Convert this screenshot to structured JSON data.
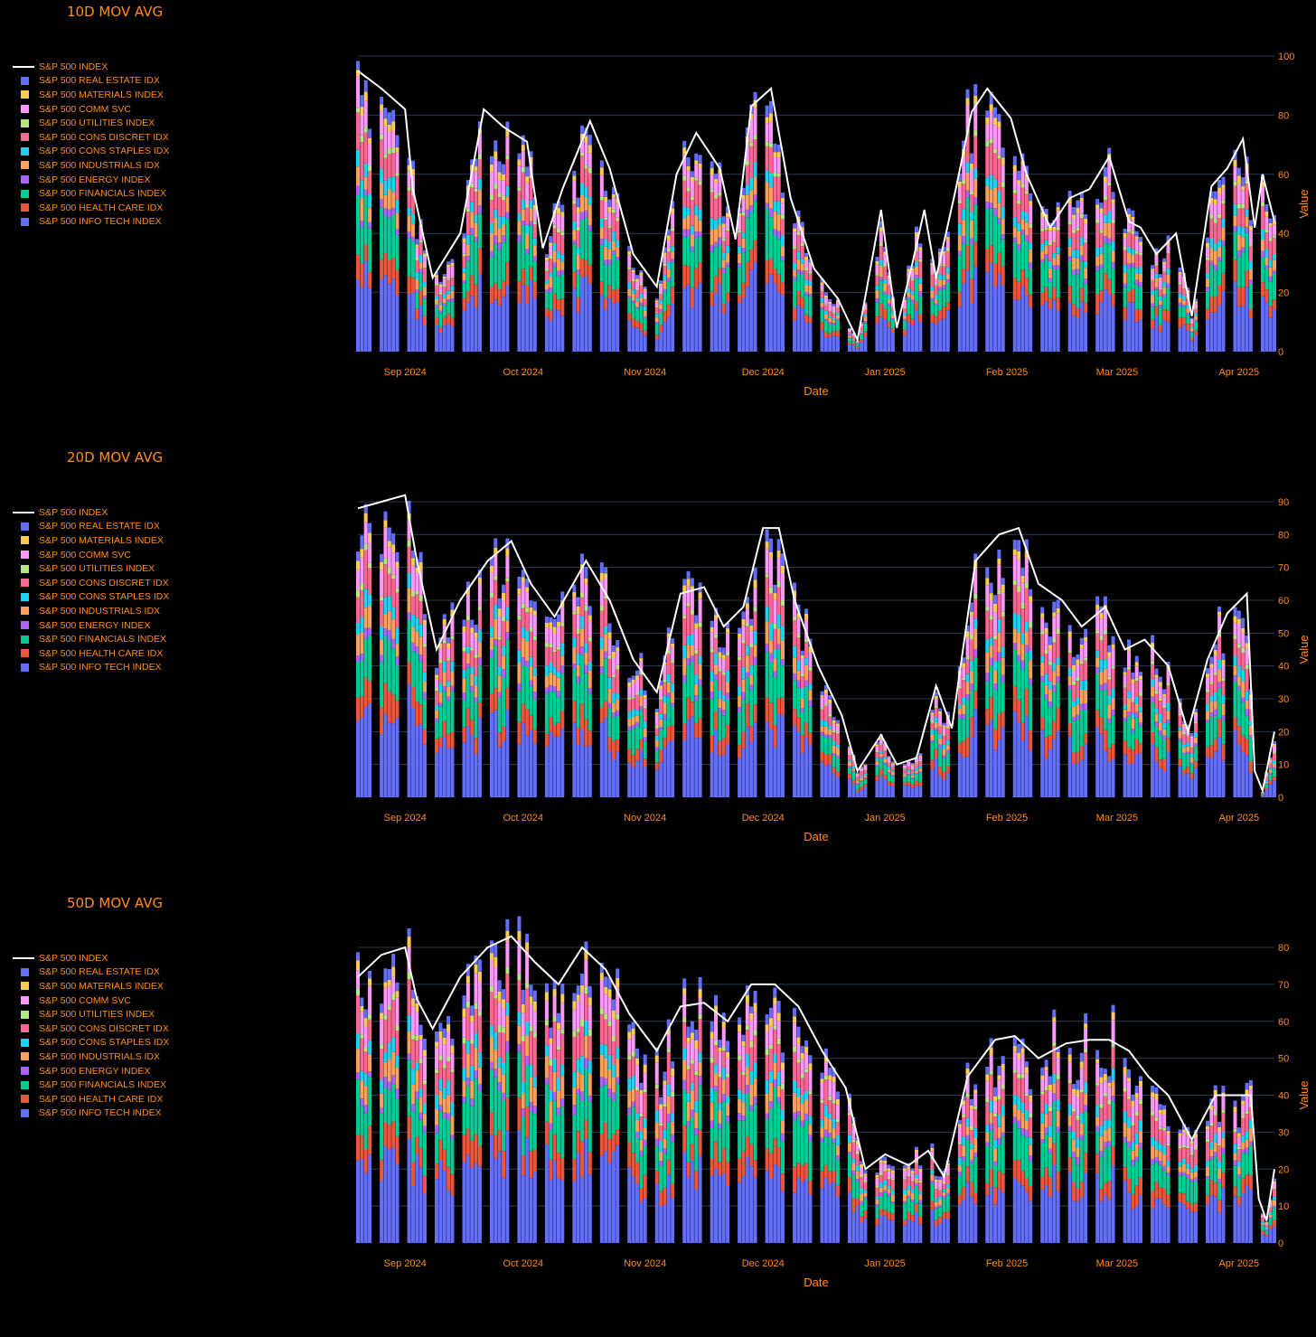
{
  "colors": {
    "background": "#000000",
    "accent": "#ff8c1a",
    "grid": "#2c3a4e",
    "index_line": "#ffffff"
  },
  "charts": [
    {
      "title": "10D MOV AVG"
    },
    {
      "title": "20D MOV AVG"
    },
    {
      "title": "50D MOV AVG"
    }
  ],
  "legend": [
    {
      "name": "S&P 500 INDEX",
      "color": "#ffffff",
      "kind": "line"
    },
    {
      "name": "S&P 500 REAL ESTATE IDX",
      "color": "#636efa",
      "kind": "bar"
    },
    {
      "name": "S&P 500 MATERIALS INDEX",
      "color": "#fecb52",
      "kind": "bar"
    },
    {
      "name": "S&P 500 COMM SVC",
      "color": "#ff97ff",
      "kind": "bar"
    },
    {
      "name": "S&P 500 UTILITIES INDEX",
      "color": "#b6e880",
      "kind": "bar"
    },
    {
      "name": "S&P 500 CONS DISCRET IDX",
      "color": "#ff6692",
      "kind": "bar"
    },
    {
      "name": "S&P 500 CONS STAPLES IDX",
      "color": "#19d3f3",
      "kind": "bar"
    },
    {
      "name": "S&P 500 INDUSTRIALS IDX",
      "color": "#ffa15a",
      "kind": "bar"
    },
    {
      "name": "S&P 500 ENERGY INDEX",
      "color": "#ab63fa",
      "kind": "bar"
    },
    {
      "name": "S&P 500 FINANCIALS INDEX",
      "color": "#00cc96",
      "kind": "bar"
    },
    {
      "name": "S&P 500 HEALTH CARE IDX",
      "color": "#ef553b",
      "kind": "bar"
    },
    {
      "name": "S&P 500 INFO TECH INDEX",
      "color": "#636efa",
      "kind": "bar"
    }
  ],
  "chart_data": [
    {
      "type": "bar",
      "barmode": "stack",
      "title": "10D MOV AVG",
      "xlabel": "Date",
      "ylabel": "Value",
      "x_range": [
        "2024-08-20",
        "2025-04-10"
      ],
      "x_ticks": [
        {
          "date": "2024-09-01",
          "label": "Sep 2024"
        },
        {
          "date": "2024-10-01",
          "label": "Oct 2024"
        },
        {
          "date": "2024-11-01",
          "label": "Nov 2024"
        },
        {
          "date": "2024-12-01",
          "label": "Dec 2024"
        },
        {
          "date": "2025-01-01",
          "label": "Jan 2025"
        },
        {
          "date": "2025-02-01",
          "label": "Feb 2025"
        },
        {
          "date": "2025-03-01",
          "label": "Mar 2025"
        },
        {
          "date": "2025-04-01",
          "label": "Apr 2025"
        }
      ],
      "ylim": [
        0,
        100
      ],
      "y_ticks": [
        0,
        20,
        40,
        60,
        80,
        100
      ],
      "y_axis_side": "right",
      "grid": true,
      "legend_position": "left",
      "index_line": [
        [
          "2024-08-20",
          95
        ],
        [
          "2024-08-26",
          89
        ],
        [
          "2024-09-01",
          82
        ],
        [
          "2024-09-03",
          55
        ],
        [
          "2024-09-08",
          25
        ],
        [
          "2024-09-15",
          40
        ],
        [
          "2024-09-21",
          82
        ],
        [
          "2024-09-26",
          76
        ],
        [
          "2024-10-02",
          71
        ],
        [
          "2024-10-06",
          35
        ],
        [
          "2024-10-11",
          55
        ],
        [
          "2024-10-18",
          78
        ],
        [
          "2024-10-23",
          62
        ],
        [
          "2024-10-29",
          33
        ],
        [
          "2024-11-04",
          22
        ],
        [
          "2024-11-09",
          60
        ],
        [
          "2024-11-14",
          74
        ],
        [
          "2024-11-20",
          62
        ],
        [
          "2024-11-24",
          38
        ],
        [
          "2024-11-28",
          83
        ],
        [
          "2024-12-03",
          89
        ],
        [
          "2024-12-08",
          52
        ],
        [
          "2024-12-14",
          28
        ],
        [
          "2024-12-20",
          18
        ],
        [
          "2024-12-25",
          4
        ],
        [
          "2024-12-31",
          48
        ],
        [
          "2025-01-04",
          8
        ],
        [
          "2025-01-08",
          30
        ],
        [
          "2025-01-11",
          48
        ],
        [
          "2025-01-14",
          25
        ],
        [
          "2025-01-19",
          55
        ],
        [
          "2025-01-23",
          81
        ],
        [
          "2025-01-27",
          89
        ],
        [
          "2025-02-02",
          79
        ],
        [
          "2025-02-06",
          60
        ],
        [
          "2025-02-12",
          42
        ],
        [
          "2025-02-17",
          52
        ],
        [
          "2025-02-22",
          55
        ],
        [
          "2025-02-27",
          66
        ],
        [
          "2025-03-04",
          44
        ],
        [
          "2025-03-07",
          42
        ],
        [
          "2025-03-11",
          33
        ],
        [
          "2025-03-16",
          40
        ],
        [
          "2025-03-20",
          12
        ],
        [
          "2025-03-25",
          56
        ],
        [
          "2025-03-29",
          62
        ],
        [
          "2025-04-02",
          72
        ],
        [
          "2025-04-05",
          42
        ],
        [
          "2025-04-07",
          60
        ],
        [
          "2025-04-10",
          44
        ]
      ]
    },
    {
      "type": "bar",
      "barmode": "stack",
      "title": "20D MOV AVG",
      "xlabel": "Date",
      "ylabel": "Value",
      "x_range": [
        "2024-08-20",
        "2025-04-10"
      ],
      "x_ticks": [
        {
          "date": "2024-09-01",
          "label": "Sep 2024"
        },
        {
          "date": "2024-10-01",
          "label": "Oct 2024"
        },
        {
          "date": "2024-11-01",
          "label": "Nov 2024"
        },
        {
          "date": "2024-12-01",
          "label": "Dec 2024"
        },
        {
          "date": "2025-01-01",
          "label": "Jan 2025"
        },
        {
          "date": "2025-02-01",
          "label": "Feb 2025"
        },
        {
          "date": "2025-03-01",
          "label": "Mar 2025"
        },
        {
          "date": "2025-04-01",
          "label": "Apr 2025"
        }
      ],
      "ylim": [
        0,
        90
      ],
      "y_ticks": [
        0,
        10,
        20,
        30,
        40,
        50,
        60,
        70,
        80,
        90
      ],
      "y_axis_side": "right",
      "grid": true,
      "legend_position": "left",
      "index_line": [
        [
          "2024-08-20",
          88
        ],
        [
          "2024-08-26",
          90
        ],
        [
          "2024-09-01",
          92
        ],
        [
          "2024-09-04",
          72
        ],
        [
          "2024-09-09",
          45
        ],
        [
          "2024-09-15",
          60
        ],
        [
          "2024-09-22",
          72
        ],
        [
          "2024-09-28",
          78
        ],
        [
          "2024-10-03",
          65
        ],
        [
          "2024-10-09",
          55
        ],
        [
          "2024-10-17",
          72
        ],
        [
          "2024-10-23",
          60
        ],
        [
          "2024-10-29",
          42
        ],
        [
          "2024-11-04",
          32
        ],
        [
          "2024-11-10",
          62
        ],
        [
          "2024-11-16",
          64
        ],
        [
          "2024-11-21",
          52
        ],
        [
          "2024-11-26",
          58
        ],
        [
          "2024-12-01",
          82
        ],
        [
          "2024-12-05",
          82
        ],
        [
          "2024-12-09",
          60
        ],
        [
          "2024-12-15",
          40
        ],
        [
          "2024-12-21",
          25
        ],
        [
          "2024-12-25",
          8
        ],
        [
          "2024-12-31",
          19
        ],
        [
          "2025-01-04",
          10
        ],
        [
          "2025-01-09",
          12
        ],
        [
          "2025-01-14",
          34
        ],
        [
          "2025-01-18",
          21
        ],
        [
          "2025-01-24",
          72
        ],
        [
          "2025-01-30",
          80
        ],
        [
          "2025-02-04",
          82
        ],
        [
          "2025-02-09",
          65
        ],
        [
          "2025-02-15",
          60
        ],
        [
          "2025-02-20",
          52
        ],
        [
          "2025-02-26",
          58
        ],
        [
          "2025-03-03",
          45
        ],
        [
          "2025-03-08",
          48
        ],
        [
          "2025-03-14",
          40
        ],
        [
          "2025-03-19",
          20
        ],
        [
          "2025-03-24",
          42
        ],
        [
          "2025-03-29",
          56
        ],
        [
          "2025-04-03",
          62
        ],
        [
          "2025-04-05",
          8
        ],
        [
          "2025-04-07",
          2
        ],
        [
          "2025-04-10",
          20
        ]
      ]
    },
    {
      "type": "bar",
      "barmode": "stack",
      "title": "50D MOV AVG",
      "xlabel": "Date",
      "ylabel": "Value",
      "x_range": [
        "2024-08-20",
        "2025-04-10"
      ],
      "x_ticks": [
        {
          "date": "2024-09-01",
          "label": "Sep 2024"
        },
        {
          "date": "2024-10-01",
          "label": "Oct 2024"
        },
        {
          "date": "2024-11-01",
          "label": "Nov 2024"
        },
        {
          "date": "2024-12-01",
          "label": "Dec 2024"
        },
        {
          "date": "2025-01-01",
          "label": "Jan 2025"
        },
        {
          "date": "2025-02-01",
          "label": "Feb 2025"
        },
        {
          "date": "2025-03-01",
          "label": "Mar 2025"
        },
        {
          "date": "2025-04-01",
          "label": "Apr 2025"
        }
      ],
      "ylim": [
        0,
        80
      ],
      "y_ticks": [
        0,
        10,
        20,
        30,
        40,
        50,
        60,
        70,
        80
      ],
      "y_axis_side": "right",
      "grid": true,
      "legend_position": "left",
      "index_line": [
        [
          "2024-08-20",
          72
        ],
        [
          "2024-08-26",
          78
        ],
        [
          "2024-09-01",
          80
        ],
        [
          "2024-09-04",
          66
        ],
        [
          "2024-09-08",
          58
        ],
        [
          "2024-09-15",
          72
        ],
        [
          "2024-09-22",
          80
        ],
        [
          "2024-09-28",
          83
        ],
        [
          "2024-10-04",
          76
        ],
        [
          "2024-10-10",
          70
        ],
        [
          "2024-10-16",
          80
        ],
        [
          "2024-10-22",
          74
        ],
        [
          "2024-10-28",
          62
        ],
        [
          "2024-11-04",
          52
        ],
        [
          "2024-11-10",
          64
        ],
        [
          "2024-11-16",
          65
        ],
        [
          "2024-11-22",
          60
        ],
        [
          "2024-11-28",
          70
        ],
        [
          "2024-12-04",
          70
        ],
        [
          "2024-12-10",
          64
        ],
        [
          "2024-12-16",
          52
        ],
        [
          "2024-12-22",
          42
        ],
        [
          "2024-12-27",
          20
        ],
        [
          "2025-01-01",
          24
        ],
        [
          "2025-01-07",
          21
        ],
        [
          "2025-01-12",
          25
        ],
        [
          "2025-01-16",
          18
        ],
        [
          "2025-01-22",
          45
        ],
        [
          "2025-01-29",
          55
        ],
        [
          "2025-02-03",
          56
        ],
        [
          "2025-02-09",
          50
        ],
        [
          "2025-02-16",
          54
        ],
        [
          "2025-02-22",
          55
        ],
        [
          "2025-02-27",
          55
        ],
        [
          "2025-03-04",
          52
        ],
        [
          "2025-03-09",
          45
        ],
        [
          "2025-03-14",
          40
        ],
        [
          "2025-03-20",
          28
        ],
        [
          "2025-03-26",
          40
        ],
        [
          "2025-04-01",
          40
        ],
        [
          "2025-04-04",
          40
        ],
        [
          "2025-04-06",
          12
        ],
        [
          "2025-04-08",
          6
        ],
        [
          "2025-04-10",
          20
        ]
      ]
    }
  ]
}
